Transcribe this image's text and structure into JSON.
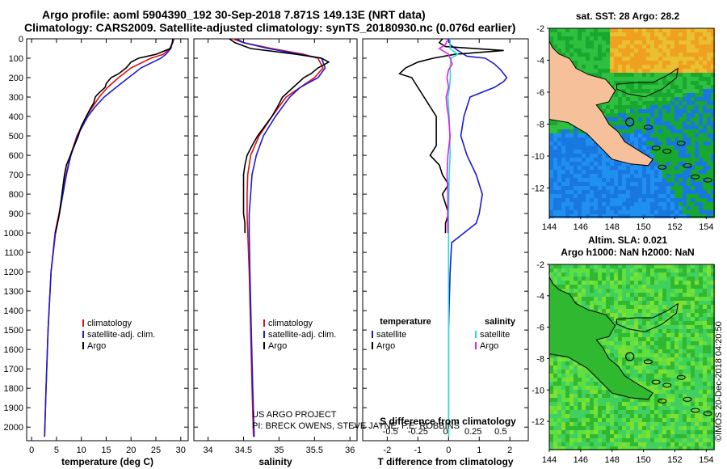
{
  "header": {
    "line1": "Argo profile: aoml 5904390_192 30-Sep-2018 7.871S 149.13E (NRT data)",
    "line2": "Climatology: CARS2009. Satellite-adjusted climatology: synTS_20180930.nc (0.076d earlier)"
  },
  "credits": {
    "project": "US ARGO PROJECT",
    "pi": "PI: BRECK OWENS, STEVE JAYNE, P.E. ROBBINS"
  },
  "watermark": "©IMOS 20-Dec-2018 04:20:50",
  "colors": {
    "climatology": "#e01010",
    "satellite": "#1a1ad6",
    "argo": "#000000",
    "sal_satellite": "#22dde0",
    "sal_argo": "#e020e0"
  },
  "chart_data": [
    {
      "id": "temperature",
      "type": "line",
      "xlabel": "temperature (deg C)",
      "ylabel": "depth",
      "xlim": [
        -1,
        31.5
      ],
      "ylim": [
        2070,
        0
      ],
      "xticks": [
        0,
        5,
        10,
        15,
        20,
        25,
        30
      ],
      "yticks": [
        0,
        100,
        200,
        300,
        400,
        500,
        600,
        700,
        800,
        900,
        1000,
        1100,
        1200,
        1300,
        1400,
        1500,
        1600,
        1700,
        1800,
        1900,
        2000
      ],
      "legend": [
        "climatology",
        "satellite-adj. clim.",
        "Argo"
      ],
      "series": [
        {
          "name": "climatology",
          "color_key": "climatology",
          "depth": [
            0,
            20,
            50,
            80,
            100,
            150,
            200,
            250,
            300,
            350,
            400,
            500,
            600,
            700,
            800,
            900,
            1000,
            1200,
            1500,
            1800,
            2050
          ],
          "values": [
            28.6,
            28.4,
            27.8,
            26.5,
            24.0,
            20.0,
            17.5,
            15.3,
            13.6,
            12.3,
            11.0,
            9.1,
            7.8,
            6.9,
            6.2,
            5.5,
            4.7,
            3.9,
            3.3,
            2.9,
            2.6
          ]
        },
        {
          "name": "satellite-adj. clim.",
          "color_key": "satellite",
          "depth": [
            0,
            20,
            50,
            80,
            100,
            150,
            200,
            250,
            300,
            350,
            400,
            500,
            600,
            700,
            800,
            900,
            1000,
            1200,
            1500,
            1800,
            2050
          ],
          "values": [
            28.6,
            28.3,
            28.0,
            27.0,
            26.0,
            22.0,
            19.5,
            17.0,
            14.6,
            12.8,
            11.3,
            9.2,
            7.9,
            7.0,
            6.3,
            5.6,
            4.8,
            3.9,
            3.3,
            2.9,
            2.6
          ]
        },
        {
          "name": "Argo",
          "color_key": "argo",
          "depth": [
            0,
            20,
            50,
            80,
            100,
            120,
            150,
            180,
            200,
            230,
            250,
            280,
            300,
            330,
            360,
            400,
            450,
            500,
            550,
            600,
            650,
            700,
            800,
            900,
            950,
            1000
          ],
          "values": [
            28.4,
            28.3,
            27.9,
            25.0,
            21.5,
            20.0,
            19.0,
            17.5,
            16.0,
            15.0,
            14.8,
            13.5,
            12.8,
            12.5,
            11.8,
            11.0,
            10.0,
            9.4,
            8.6,
            7.8,
            7.0,
            6.6,
            6.1,
            5.6,
            5.2,
            4.8
          ]
        }
      ]
    },
    {
      "id": "salinity",
      "type": "line",
      "xlabel": "salinity",
      "ylabel": "depth",
      "xlim": [
        33.8,
        36.1
      ],
      "ylim": [
        2070,
        0
      ],
      "xticks": [
        34,
        34.5,
        35,
        35.5,
        36
      ],
      "legend": [
        "climatology",
        "satellite-adj. clim.",
        "Argo"
      ],
      "series": [
        {
          "name": "climatology",
          "color_key": "climatology",
          "depth": [
            0,
            20,
            50,
            80,
            100,
            150,
            200,
            250,
            300,
            400,
            500,
            600,
            700,
            800,
            900,
            1000,
            1200,
            1500,
            1800,
            2050
          ],
          "values": [
            34.35,
            34.5,
            34.9,
            35.35,
            35.55,
            35.62,
            35.5,
            35.3,
            35.1,
            34.9,
            34.72,
            34.6,
            34.56,
            34.55,
            34.55,
            34.56,
            34.58,
            34.6,
            34.62,
            34.64
          ]
        },
        {
          "name": "satellite-adj. clim.",
          "color_key": "satellite",
          "depth": [
            0,
            20,
            50,
            80,
            100,
            150,
            200,
            250,
            300,
            400,
            500,
            600,
            700,
            800,
            900,
            1000,
            1200,
            1500,
            1800,
            2050
          ],
          "values": [
            34.4,
            34.5,
            34.85,
            35.3,
            35.6,
            35.65,
            35.55,
            35.3,
            35.15,
            34.95,
            34.78,
            34.68,
            34.62,
            34.6,
            34.58,
            34.58,
            34.59,
            34.61,
            34.63,
            34.65
          ]
        },
        {
          "name": "Argo",
          "color_key": "argo",
          "depth": [
            0,
            20,
            50,
            80,
            100,
            120,
            150,
            180,
            200,
            250,
            300,
            350,
            400,
            450,
            500,
            550,
            600,
            650,
            700,
            800,
            900,
            950,
            1000
          ],
          "values": [
            34.3,
            34.38,
            34.6,
            35.25,
            35.6,
            35.7,
            35.55,
            35.45,
            35.35,
            35.2,
            35.05,
            34.98,
            34.9,
            34.8,
            34.7,
            34.62,
            34.55,
            34.52,
            34.5,
            34.5,
            34.5,
            34.52,
            34.52
          ]
        }
      ]
    },
    {
      "id": "difference",
      "type": "line",
      "xlabel": "T difference from climatology",
      "xlabel_top": "S difference from climatology",
      "xlim": [
        -2.8,
        2.6
      ],
      "ylim": [
        2070,
        0
      ],
      "xticks": [
        -2,
        -1,
        0,
        1,
        2
      ],
      "xticks_s": [
        "-0.5",
        "-0.25",
        "0",
        "0.25",
        "0.5"
      ],
      "xticks_s_values": [
        -0.5,
        -0.25,
        0,
        0.25,
        0.5
      ],
      "legend_left_title": "temperature",
      "legend_right_title": "salinity",
      "legend": [
        "satellite",
        "Argo",
        "satellite",
        "Argo"
      ],
      "series": [
        {
          "name": "T satellite",
          "color_key": "satellite",
          "depth": [
            0,
            30,
            60,
            90,
            100,
            130,
            160,
            200,
            220,
            250,
            300,
            400,
            500,
            600,
            700,
            800,
            900,
            950,
            1000,
            1050,
            1200,
            1500,
            2050
          ],
          "values": [
            0.0,
            0.05,
            0.3,
            0.6,
            1.2,
            1.5,
            1.7,
            1.9,
            1.8,
            1.5,
            0.7,
            0.5,
            0.4,
            0.6,
            0.9,
            1.1,
            1.0,
            0.9,
            0.5,
            0.1,
            0.05,
            0.0,
            0.0
          ]
        },
        {
          "name": "T Argo",
          "color_key": "argo",
          "depth": [
            0,
            20,
            40,
            60,
            80,
            100,
            120,
            150,
            180,
            200,
            250,
            300,
            350,
            400,
            450,
            500,
            550,
            600,
            650,
            700,
            750,
            800,
            850,
            900,
            950,
            1000
          ],
          "values": [
            -0.2,
            -0.3,
            -0.1,
            1.8,
            0.2,
            -0.5,
            -1.0,
            -1.4,
            -1.6,
            -1.2,
            -1.0,
            -0.8,
            -0.6,
            -0.4,
            -0.4,
            -0.4,
            -0.4,
            -0.6,
            -0.3,
            -0.2,
            0.0,
            -0.2,
            -0.1,
            0.0,
            -0.1,
            -0.1
          ]
        },
        {
          "name": "S satellite",
          "color_key": "sal_satellite",
          "depth": [
            0,
            50,
            80,
            100,
            150,
            200,
            250,
            300,
            350,
            400,
            500,
            600,
            700,
            800,
            900,
            1000,
            1200,
            1500,
            2050
          ],
          "values": [
            0.05,
            0.05,
            0.3,
            0.08,
            0.05,
            0.06,
            0.03,
            -0.02,
            0.0,
            0.02,
            0.04,
            0.05,
            0.02,
            0.01,
            0.0,
            0.0,
            0.0,
            0.0,
            0.0
          ]
        },
        {
          "name": "S Argo",
          "color_key": "sal_argo",
          "depth": [
            0,
            30,
            50,
            80,
            100,
            130,
            160,
            200,
            250,
            300,
            350,
            400,
            500,
            600,
            700,
            800,
            900,
            1000
          ],
          "values": [
            -0.02,
            -0.1,
            -0.3,
            0.0,
            0.05,
            0.12,
            0.0,
            -0.05,
            0.0,
            -0.08,
            -0.05,
            0.0,
            0.05,
            -0.02,
            -0.05,
            -0.02,
            -0.03,
            -0.02
          ]
        }
      ]
    },
    {
      "id": "map_sst",
      "type": "heatmap",
      "title": "sat. SST: 28 Argo: 28.2",
      "xlim": [
        144,
        154.5
      ],
      "ylim": [
        -13.8,
        -2
      ],
      "xticks": [
        144,
        146,
        148,
        150,
        152,
        154
      ],
      "yticks": [
        -2,
        -4,
        -6,
        -8,
        -10,
        -12
      ],
      "marker": {
        "lon": 149.13,
        "lat": -7.871
      },
      "colors": [
        "#f0a020",
        "#e8c030",
        "#30c040",
        "#18a830",
        "#1878e0",
        "#2090f0"
      ]
    },
    {
      "id": "map_sla",
      "type": "heatmap",
      "title": "Altim. SLA: 0.021",
      "subtitle": "Argo h1000: NaN h2000: NaN",
      "xlim": [
        144,
        154.5
      ],
      "ylim": [
        -13.8,
        -2
      ],
      "xticks": [
        144,
        146,
        148,
        150,
        152,
        154
      ],
      "yticks": [
        -2,
        -4,
        -6,
        -8,
        -10,
        -12
      ],
      "marker": {
        "lon": 149.13,
        "lat": -7.871
      },
      "colors": [
        "#40d060",
        "#60e040",
        "#30b830",
        "#80e030"
      ]
    }
  ]
}
